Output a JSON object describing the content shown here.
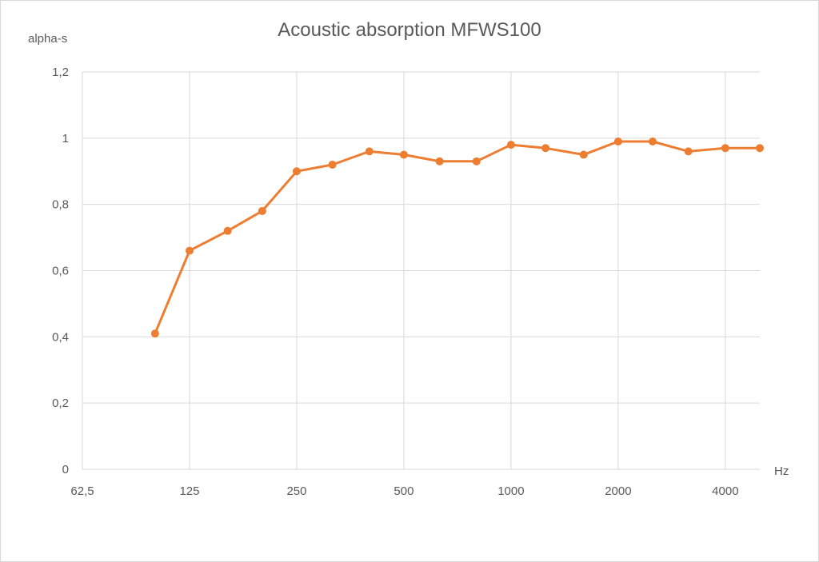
{
  "chart_data": {
    "type": "line",
    "title": "Acoustic absorption MFWS100",
    "xlabel": "Hz",
    "ylabel": "alpha-s",
    "x_scale": "log2",
    "x_ticks": [
      {
        "value": 62.5,
        "label": "62,5"
      },
      {
        "value": 125,
        "label": "125"
      },
      {
        "value": 250,
        "label": "250"
      },
      {
        "value": 500,
        "label": "500"
      },
      {
        "value": 1000,
        "label": "1000"
      },
      {
        "value": 2000,
        "label": "2000"
      },
      {
        "value": 4000,
        "label": "4000"
      }
    ],
    "xlim": [
      62.5,
      5000
    ],
    "y_ticks": [
      {
        "value": 0,
        "label": "0"
      },
      {
        "value": 0.2,
        "label": "0,2"
      },
      {
        "value": 0.4,
        "label": "0,4"
      },
      {
        "value": 0.6,
        "label": "0,6"
      },
      {
        "value": 0.8,
        "label": "0,8"
      },
      {
        "value": 1,
        "label": "1"
      },
      {
        "value": 1.2,
        "label": "1,2"
      }
    ],
    "ylim": [
      0,
      1.2
    ],
    "grid": true,
    "series": [
      {
        "color": "#ed7d31",
        "x": [
          100,
          125,
          160,
          200,
          250,
          315,
          400,
          500,
          630,
          800,
          1000,
          1250,
          1600,
          2000,
          2500,
          3150,
          4000,
          5000
        ],
        "y": [
          0.41,
          0.66,
          0.72,
          0.78,
          0.9,
          0.92,
          0.96,
          0.95,
          0.93,
          0.93,
          0.98,
          0.97,
          0.95,
          0.99,
          0.99,
          0.96,
          0.97,
          0.97
        ]
      }
    ]
  }
}
